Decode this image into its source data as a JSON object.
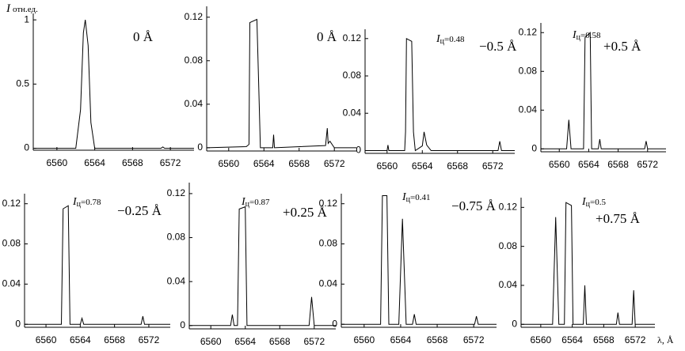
{
  "chart_data": [
    {
      "type": "line",
      "ylabel": {
        "symbol": "I",
        "unit": "отн.ед."
      },
      "label": "0 Å",
      "color": "#000000",
      "x": [
        6557.5,
        6562,
        6562.5,
        6562.8,
        6563,
        6563.3,
        6563.6,
        6564,
        6571,
        6571.2,
        6571.4,
        6574.5
      ],
      "values": [
        0,
        0,
        0.3,
        0.9,
        1,
        0.8,
        0.2,
        0,
        0,
        0.01,
        0,
        0
      ],
      "xlim": [
        6557.5,
        6574.5
      ],
      "ylim": [
        -0.015,
        1.05
      ],
      "xticks": [
        6560,
        6564,
        6568,
        6572
      ],
      "yticks": [
        0,
        0.5,
        1
      ]
    },
    {
      "type": "line",
      "label": "0 Å",
      "color": "#000000",
      "x": [
        6557.5,
        6562,
        6562.3,
        6562.4,
        6563.2,
        6563.4,
        6563.6,
        6565,
        6565.1,
        6565.2,
        6571,
        6571.2,
        6571.3,
        6571.5,
        6572,
        6574.5
      ],
      "values": [
        0,
        0.001,
        0.003,
        0.115,
        0.118,
        0.06,
        0,
        0,
        0.012,
        0,
        0.002,
        0.018,
        0.004,
        0.006,
        0,
        0
      ],
      "xlim": [
        6557.5,
        6574.5
      ],
      "ylim": [
        -0.003,
        0.13
      ],
      "xticks": [
        6560,
        6564,
        6568,
        6572
      ],
      "yticks": [
        0,
        0.04,
        0.08,
        0.12
      ]
    },
    {
      "type": "line",
      "label": "−0.5 Å",
      "note": {
        "symbol": "I",
        "index": "ц",
        "value": "=0.48"
      },
      "color": "#000000",
      "x": [
        6557.5,
        6560,
        6560.1,
        6560.2,
        6562,
        6562.1,
        6562.2,
        6562.8,
        6563,
        6563.2,
        6564,
        6564.2,
        6564.5,
        6565,
        6572.6,
        6572.8,
        6573,
        6574.5
      ],
      "values": [
        0,
        0,
        0.006,
        0,
        0,
        0.02,
        0.12,
        0.117,
        0.02,
        0,
        0.005,
        0.02,
        0.006,
        0,
        0,
        0.01,
        0,
        0
      ],
      "xlim": [
        6557.5,
        6574.5
      ],
      "ylim": [
        -0.003,
        0.13
      ],
      "xticks": [
        6560,
        6564,
        6568,
        6572
      ],
      "yticks": [
        0,
        0.04,
        0.08,
        0.12
      ]
    },
    {
      "type": "line",
      "label": "+0.5 Å",
      "note": {
        "symbol": "I",
        "index": "ц",
        "value": "=0.58"
      },
      "color": "#000000",
      "x": [
        6557.5,
        6561,
        6561.3,
        6561.6,
        6563.3,
        6563.5,
        6564.2,
        6564.4,
        6565.3,
        6565.5,
        6565.7,
        6571.6,
        6571.8,
        6572,
        6574.5
      ],
      "values": [
        0,
        0,
        0.03,
        0,
        0,
        0.115,
        0.12,
        0,
        0,
        0.01,
        0,
        0,
        0.008,
        0,
        0
      ],
      "xlim": [
        6557.5,
        6574.5
      ],
      "ylim": [
        -0.003,
        0.13
      ],
      "xticks": [
        6560,
        6564,
        6568,
        6572
      ],
      "yticks": [
        0,
        0.04,
        0.08,
        0.12
      ]
    },
    {
      "type": "line",
      "label": "−0.25 Å",
      "note": {
        "symbol": "I",
        "index": "ц",
        "value": "=0.78"
      },
      "color": "#000000",
      "x": [
        6557.5,
        6561.8,
        6562,
        6562.6,
        6562.8,
        6564,
        6564.2,
        6564.4,
        6571.1,
        6571.3,
        6571.5,
        6574.5
      ],
      "values": [
        0,
        0,
        0.115,
        0.118,
        0,
        0,
        0.006,
        0,
        0,
        0.008,
        0,
        0
      ],
      "xlim": [
        6557.5,
        6574.5
      ],
      "ylim": [
        -0.003,
        0.13
      ],
      "xticks": [
        6560,
        6564,
        6568,
        6572
      ],
      "yticks": [
        0,
        0.04,
        0.08,
        0.12
      ]
    },
    {
      "type": "line",
      "label": "+0.25 Å",
      "note": {
        "symbol": "I",
        "index": "ц",
        "value": "=0.87"
      },
      "color": "#000000",
      "x": [
        6557.5,
        6562.3,
        6562.5,
        6562.7,
        6563.1,
        6563.3,
        6564,
        6564.2,
        6571.4,
        6571.7,
        6572,
        6574.5
      ],
      "values": [
        0,
        0,
        0.01,
        0,
        0,
        0.106,
        0.108,
        0,
        0,
        0.026,
        0,
        0
      ],
      "xlim": [
        6557.5,
        6574.5
      ],
      "ylim": [
        -0.003,
        0.13
      ],
      "xticks": [
        6560,
        6564,
        6568,
        6572
      ],
      "yticks": [
        0,
        0.04,
        0.08,
        0.12
      ]
    },
    {
      "type": "line",
      "label": "−0.75 Å",
      "note": {
        "symbol": "I",
        "index": "ц",
        "value": "=0.41"
      },
      "color": "#000000",
      "x": [
        6557.5,
        6561.8,
        6562,
        6562.5,
        6562.7,
        6563.8,
        6564.2,
        6564.6,
        6565.3,
        6565.5,
        6565.7,
        6572.1,
        6572.3,
        6572.5,
        6574.5
      ],
      "values": [
        0,
        0,
        0.128,
        0.128,
        0,
        0,
        0.105,
        0,
        0,
        0.01,
        0,
        0,
        0.008,
        0,
        0
      ],
      "xlim": [
        6557.5,
        6574.5
      ],
      "ylim": [
        -0.003,
        0.13
      ],
      "xticks": [
        6560,
        6564,
        6568,
        6572
      ],
      "yticks": [
        0,
        0.04,
        0.08,
        0.12
      ]
    },
    {
      "type": "line",
      "label": "+0.75 Å",
      "note": {
        "symbol": "I",
        "index": "ц",
        "value": "=0.5"
      },
      "xlabel": "λ, Å",
      "color": "#000000",
      "x": [
        6557.5,
        6561.5,
        6561.9,
        6562.3,
        6563,
        6563.2,
        6563.9,
        6564.1,
        6565.4,
        6565.6,
        6565.8,
        6569.6,
        6569.8,
        6570,
        6571.6,
        6571.8,
        6572,
        6574.5
      ],
      "values": [
        0,
        0,
        0.11,
        0,
        0,
        0.125,
        0.122,
        0,
        0,
        0.04,
        0,
        0,
        0.012,
        0,
        0,
        0.035,
        0,
        0
      ],
      "xlim": [
        6557.5,
        6574.5
      ],
      "ylim": [
        -0.003,
        0.13
      ],
      "xticks": [
        6560,
        6564,
        6568,
        6572
      ],
      "yticks": [
        0,
        0.04,
        0.08,
        0.12
      ]
    }
  ]
}
